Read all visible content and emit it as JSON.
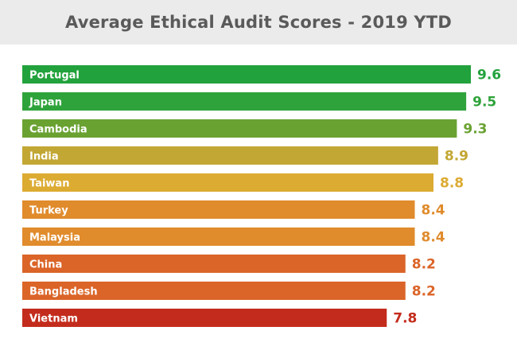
{
  "chart_data": {
    "type": "bar",
    "orientation": "horizontal",
    "title": "Average Ethical Audit Scores - 2019 YTD",
    "categories": [
      "Portugal",
      "Japan",
      "Cambodia",
      "India",
      "Taiwan",
      "Turkey",
      "Malaysia",
      "China",
      "Bangladesh",
      "Vietnam"
    ],
    "values": [
      9.6,
      9.5,
      9.3,
      8.9,
      8.8,
      8.4,
      8.4,
      8.2,
      8.2,
      7.8
    ],
    "value_labels": [
      "9.6",
      "9.5",
      "9.3",
      "8.9",
      "8.8",
      "8.4",
      "8.4",
      "8.2",
      "8.2",
      "7.8"
    ],
    "colors": [
      "#22a23c",
      "#2fa33b",
      "#6aa232",
      "#c3a734",
      "#dcab32",
      "#e08b2c",
      "#e08b2c",
      "#db6428",
      "#db6428",
      "#c32c1c"
    ],
    "xlim": [
      0,
      9.6
    ],
    "grid": false,
    "legend": "none"
  }
}
